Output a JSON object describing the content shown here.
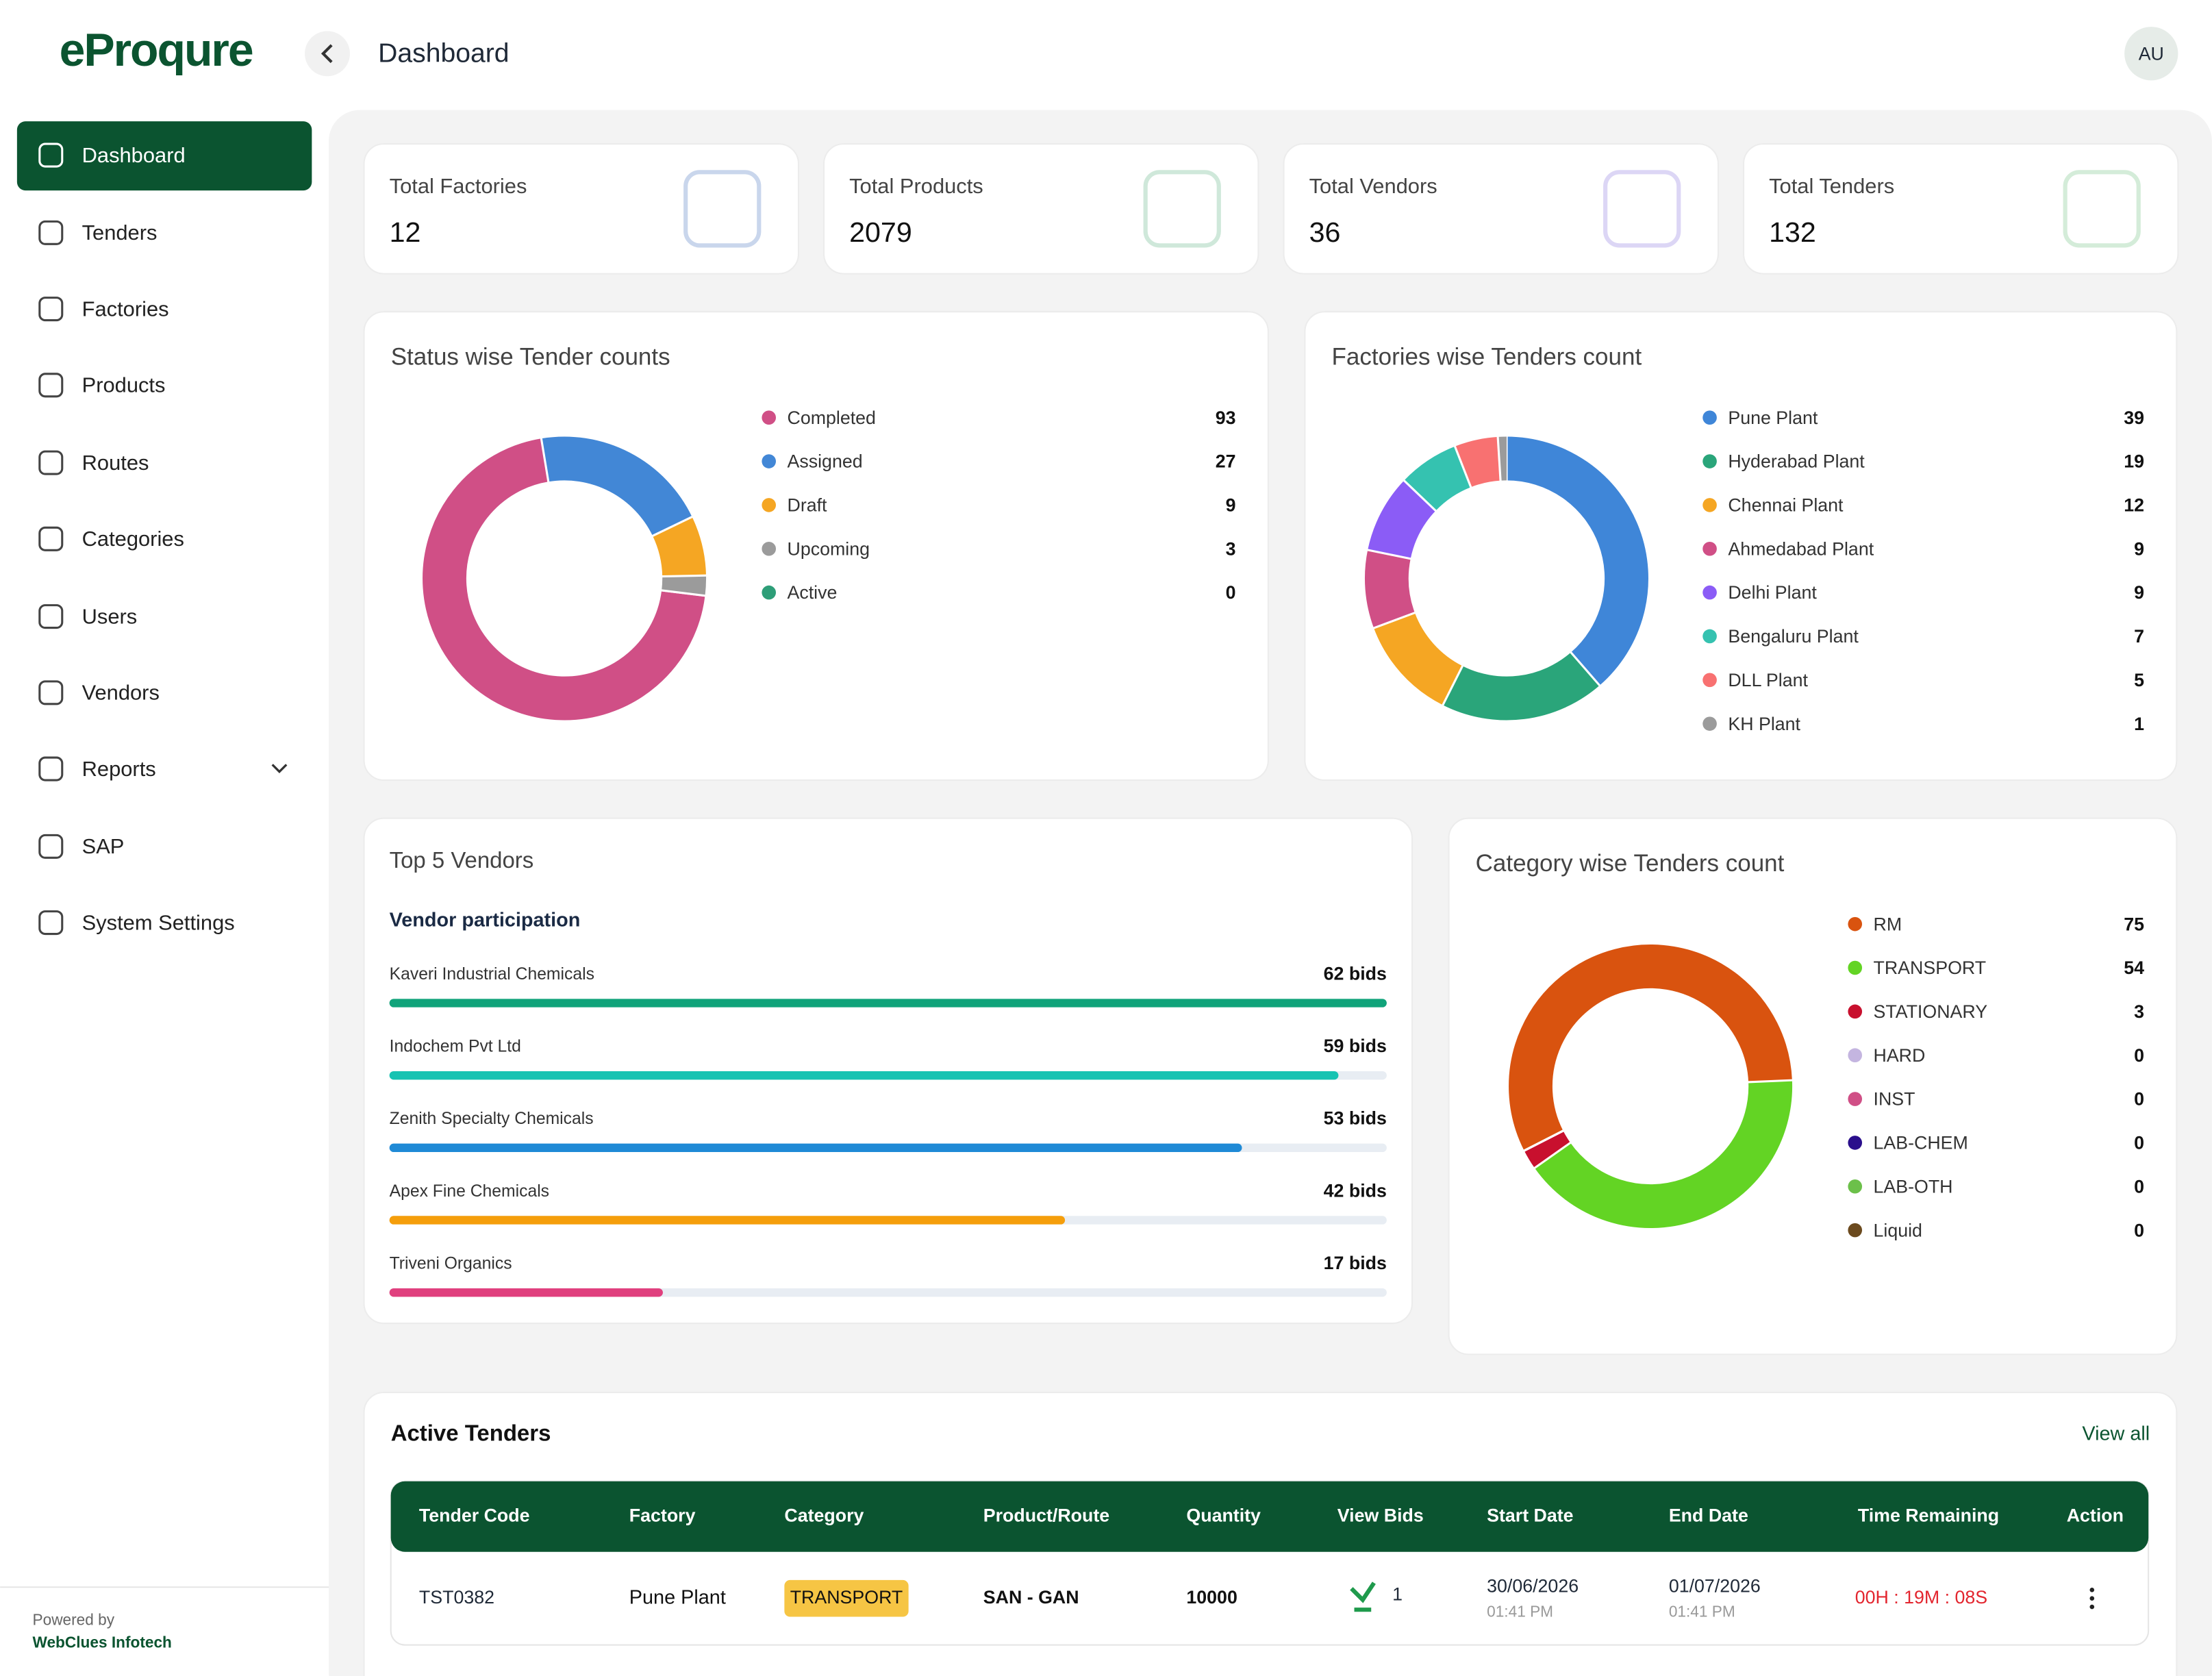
{
  "header": {
    "logo": "eProqure",
    "title": "Dashboard",
    "avatar": "AU"
  },
  "sidebar": {
    "items": [
      "Dashboard",
      "Tenders",
      "Factories",
      "Products",
      "Routes",
      "Categories",
      "Users",
      "Vendors",
      "Reports",
      "SAP",
      "System Settings"
    ],
    "footer": {
      "powered": "Powered by",
      "company": "WebClues Infotech"
    }
  },
  "stats": [
    {
      "label": "Total Factories",
      "value": "12"
    },
    {
      "label": "Total Products",
      "value": "2079"
    },
    {
      "label": "Total Vendors",
      "value": "36"
    },
    {
      "label": "Total Tenders",
      "value": "132"
    }
  ],
  "chart_data": [
    {
      "type": "donut",
      "title": "Status wise Tender counts",
      "categories": [
        "Completed",
        "Assigned",
        "Draft",
        "Upcoming",
        "Active"
      ],
      "values": [
        93,
        27,
        9,
        3,
        0
      ],
      "colors": [
        "#d04f86",
        "#4287d6",
        "#f5a623",
        "#9b9b9b",
        "#2e9e78"
      ]
    },
    {
      "type": "donut",
      "title": "Factories wise Tenders count",
      "categories": [
        "Pune Plant",
        "Hyderabad Plant",
        "Chennai Plant",
        "Ahmedabad Plant",
        "Delhi Plant",
        "Bengaluru Plant",
        "DLL Plant",
        "KH Plant"
      ],
      "values": [
        39,
        19,
        12,
        9,
        9,
        7,
        5,
        1
      ],
      "colors": [
        "#3f86d8",
        "#2aa57a",
        "#f5a623",
        "#d04f86",
        "#8b5cf6",
        "#35c2b0",
        "#f87171",
        "#9b9b9b"
      ]
    },
    {
      "type": "hbar",
      "title": "Top 5 Vendors",
      "subtitle": "Vendor participation",
      "categories": [
        "Kaveri Industrial Chemicals",
        "Indochem Pvt Ltd",
        "Zenith Specialty Chemicals",
        "Apex Fine Chemicals",
        "Triveni Organics"
      ],
      "values": [
        62,
        59,
        53,
        42,
        17
      ],
      "value_labels": [
        "62 bids",
        "59 bids",
        "53 bids",
        "42 bids",
        "17 bids"
      ],
      "colors": [
        "#10a37a",
        "#17c3b2",
        "#1f8ad6",
        "#f59e0b",
        "#e0407e"
      ]
    },
    {
      "type": "donut",
      "title": "Category wise Tenders count",
      "categories": [
        "RM",
        "TRANSPORT",
        "STATIONARY",
        "HARD",
        "INST",
        "LAB-CHEM",
        "LAB-OTH",
        "Liquid"
      ],
      "values": [
        75,
        54,
        3,
        0,
        0,
        0,
        0,
        0
      ],
      "colors": [
        "#d9530f",
        "#63d424",
        "#c8102e",
        "#c4b5e0",
        "#d04f86",
        "#2a0f8c",
        "#6cc04a",
        "#6b4a1e"
      ]
    }
  ],
  "table": {
    "title": "Active Tenders",
    "link": "View all",
    "columns": [
      "Tender Code",
      "Factory",
      "Category",
      "Product/Route",
      "Quantity",
      "View Bids",
      "Start Date",
      "End Date",
      "Time Remaining",
      "Action"
    ],
    "rows": [
      {
        "code": "TST0382",
        "factory": "Pune Plant",
        "category": "TRANSPORT",
        "route": "SAN - GAN",
        "quantity": "10000",
        "bids": "1",
        "start_date": "30/06/2026",
        "start_time": "01:41 PM",
        "end_date": "01/07/2026",
        "end_time": "01:41 PM",
        "remaining": "00H : 19M : 08S"
      }
    ]
  }
}
